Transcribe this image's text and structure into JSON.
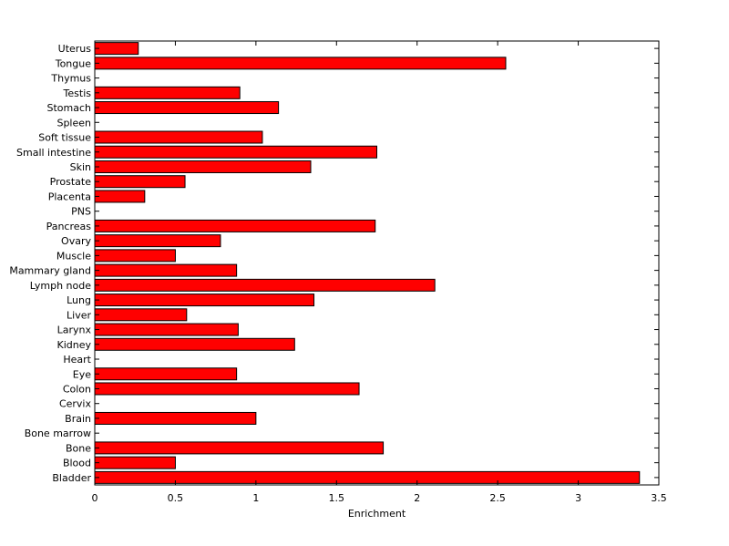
{
  "chart_data": {
    "type": "bar",
    "orientation": "horizontal",
    "title": "",
    "xlabel": "Enrichment",
    "ylabel": "",
    "xlim": [
      0,
      3.5
    ],
    "xticks": [
      0,
      0.5,
      1,
      1.5,
      2,
      2.5,
      3,
      3.5
    ],
    "xtick_labels": [
      "0",
      "0.5",
      "1",
      "1.5",
      "2",
      "2.5",
      "3",
      "3.5"
    ],
    "grid": false,
    "legend": "none",
    "bar_color": "#ff0000",
    "bar_edge_color": "#000000",
    "categories": [
      "Bladder",
      "Blood",
      "Bone",
      "Bone marrow",
      "Brain",
      "Cervix",
      "Colon",
      "Eye",
      "Heart",
      "Kidney",
      "Larynx",
      "Liver",
      "Lung",
      "Lymph node",
      "Mammary gland",
      "Muscle",
      "Ovary",
      "Pancreas",
      "PNS",
      "Placenta",
      "Prostate",
      "Skin",
      "Small intestine",
      "Soft tissue",
      "Spleen",
      "Stomach",
      "Testis",
      "Thymus",
      "Tongue",
      "Uterus"
    ],
    "values": [
      3.38,
      0.5,
      1.79,
      0,
      1.0,
      0,
      1.64,
      0.88,
      0,
      1.24,
      0.89,
      0.57,
      1.36,
      2.11,
      0.88,
      0.5,
      0.78,
      1.74,
      0,
      0.31,
      0.56,
      1.34,
      1.75,
      1.04,
      0,
      1.14,
      0.9,
      0,
      2.55,
      0.27
    ]
  }
}
